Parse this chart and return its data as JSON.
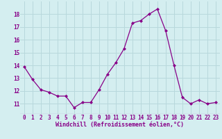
{
  "x": [
    0,
    1,
    2,
    3,
    4,
    5,
    6,
    7,
    8,
    9,
    10,
    11,
    12,
    13,
    14,
    15,
    16,
    17,
    18,
    19,
    20,
    21,
    22,
    23
  ],
  "y": [
    13.9,
    12.9,
    12.1,
    11.9,
    11.6,
    11.6,
    10.7,
    11.1,
    11.1,
    12.1,
    13.3,
    14.2,
    15.3,
    17.3,
    17.5,
    18.0,
    18.4,
    16.7,
    14.0,
    11.5,
    11.0,
    11.3,
    11.0,
    11.1
  ],
  "line_color": "#880088",
  "marker": "D",
  "marker_size": 2,
  "bg_color": "#d4eef0",
  "grid_color": "#b8d8dc",
  "xlabel": "Windchill (Refroidissement éolien,°C)",
  "xlabel_color": "#880088",
  "tick_color": "#880088",
  "ylim": [
    10.2,
    19.0
  ],
  "yticks": [
    11,
    12,
    13,
    14,
    15,
    16,
    17,
    18
  ],
  "xticks": [
    0,
    1,
    2,
    3,
    4,
    5,
    6,
    7,
    8,
    9,
    10,
    11,
    12,
    13,
    14,
    15,
    16,
    17,
    18,
    19,
    20,
    21,
    22,
    23
  ],
  "tick_fontsize": 5.5,
  "xlabel_fontsize": 6.0,
  "linewidth": 0.9
}
